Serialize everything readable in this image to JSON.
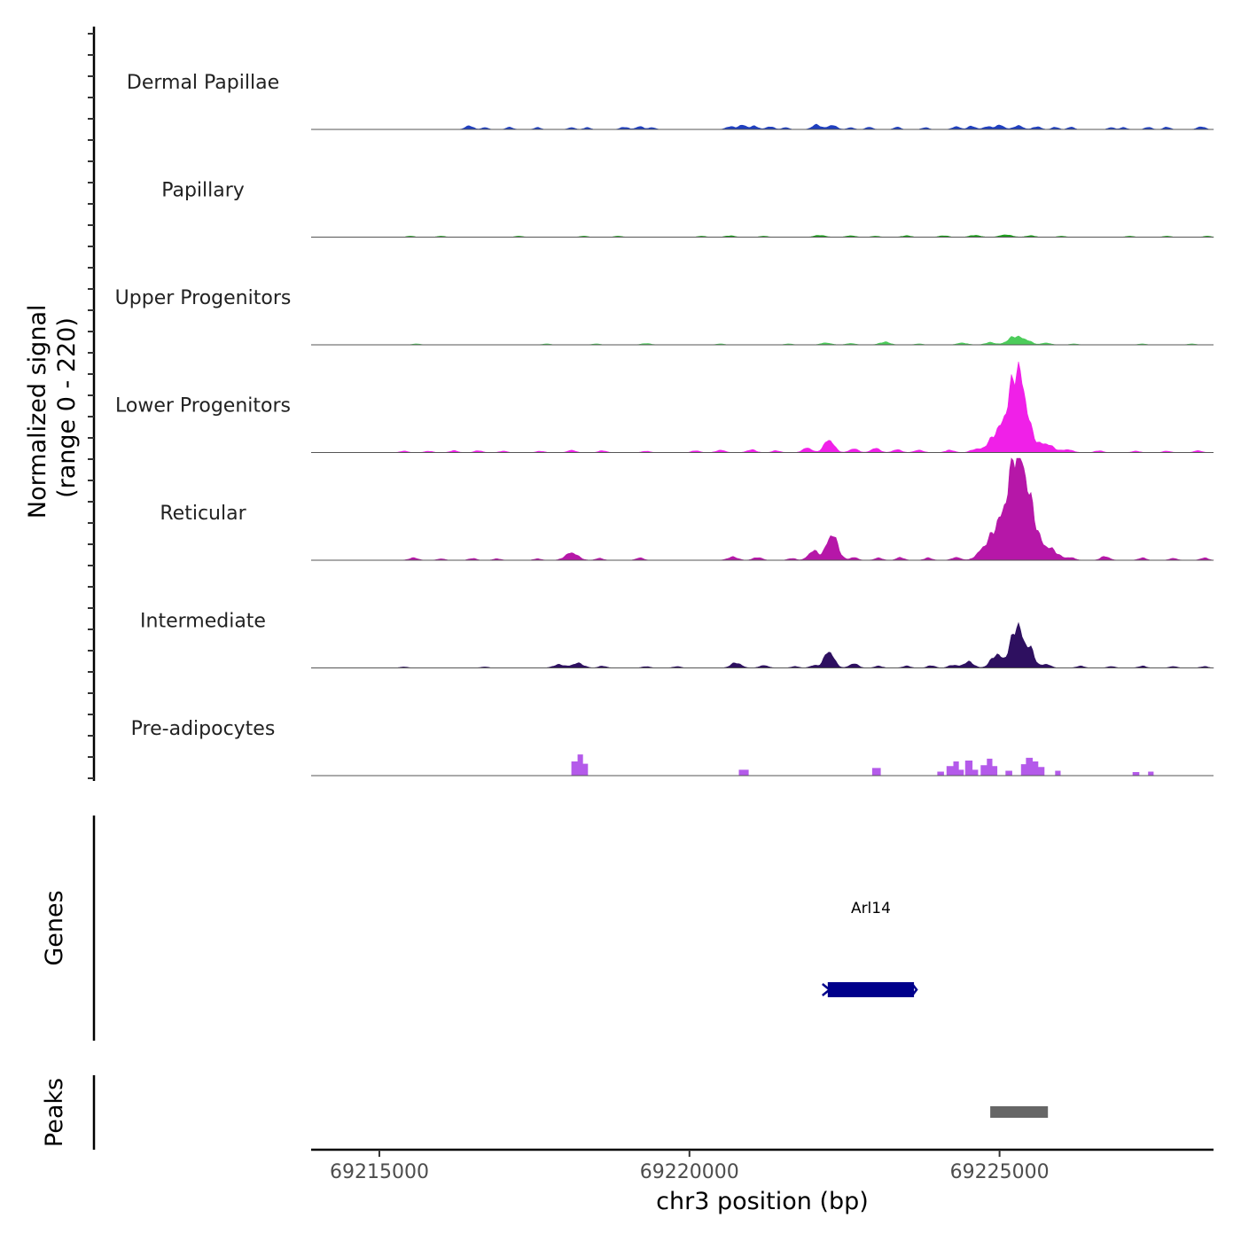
{
  "chart_data": {
    "type": "area",
    "title": "",
    "xlabel": "chr3 position (bp)",
    "ylabel_line1": "Normalized signal",
    "ylabel_line2": "(range 0 - 220)",
    "y_range": [
      0,
      220
    ],
    "xlim": [
      69213900,
      69228450
    ],
    "x_ticks": [
      69215000,
      69220000,
      69225000
    ],
    "x_tick_labels": [
      "69215000",
      "69220000",
      "69225000"
    ],
    "tracks": [
      {
        "name": "Dermal Papillae",
        "color": "#1f3fbf",
        "peaks": [
          [
            69216450,
            8,
            60
          ],
          [
            69216700,
            4,
            50
          ],
          [
            69217100,
            5,
            50
          ],
          [
            69217550,
            4,
            50
          ],
          [
            69218100,
            4,
            50
          ],
          [
            69218350,
            4,
            50
          ],
          [
            69218950,
            5,
            60
          ],
          [
            69219200,
            6,
            60
          ],
          [
            69219400,
            4,
            50
          ],
          [
            69220650,
            6,
            60
          ],
          [
            69220850,
            9,
            70
          ],
          [
            69221050,
            7,
            60
          ],
          [
            69221300,
            6,
            60
          ],
          [
            69221550,
            4,
            50
          ],
          [
            69222050,
            10,
            70
          ],
          [
            69222300,
            9,
            70
          ],
          [
            69222600,
            4,
            50
          ],
          [
            69222900,
            5,
            50
          ],
          [
            69223350,
            5,
            50
          ],
          [
            69223800,
            4,
            50
          ],
          [
            69224300,
            6,
            60
          ],
          [
            69224550,
            7,
            60
          ],
          [
            69224800,
            6,
            60
          ],
          [
            69225000,
            9,
            70
          ],
          [
            69225300,
            8,
            70
          ],
          [
            69225600,
            6,
            60
          ],
          [
            69225900,
            5,
            50
          ],
          [
            69226150,
            5,
            50
          ],
          [
            69226800,
            4,
            50
          ],
          [
            69227000,
            4,
            50
          ],
          [
            69227400,
            5,
            50
          ],
          [
            69227700,
            5,
            50
          ],
          [
            69228250,
            6,
            60
          ]
        ]
      },
      {
        "name": "Papillary",
        "color": "#1e9e1e",
        "peaks": [
          [
            69215500,
            2,
            60
          ],
          [
            69216000,
            2,
            60
          ],
          [
            69217250,
            2,
            60
          ],
          [
            69218300,
            2,
            60
          ],
          [
            69218850,
            2,
            60
          ],
          [
            69220200,
            2,
            60
          ],
          [
            69220650,
            3,
            70
          ],
          [
            69221200,
            2,
            60
          ],
          [
            69222100,
            4,
            80
          ],
          [
            69222600,
            3,
            70
          ],
          [
            69223000,
            2,
            60
          ],
          [
            69223500,
            3,
            70
          ],
          [
            69224100,
            3,
            70
          ],
          [
            69224600,
            4,
            80
          ],
          [
            69225100,
            5,
            90
          ],
          [
            69225500,
            3,
            70
          ],
          [
            69226000,
            2,
            60
          ],
          [
            69227100,
            2,
            60
          ],
          [
            69227700,
            2,
            60
          ],
          [
            69228350,
            2,
            60
          ]
        ]
      },
      {
        "name": "Upper Progenitors",
        "color": "#4ccc5a",
        "peaks": [
          [
            69215600,
            2,
            60
          ],
          [
            69217700,
            2,
            60
          ],
          [
            69218500,
            2,
            60
          ],
          [
            69219300,
            3,
            70
          ],
          [
            69220500,
            2,
            60
          ],
          [
            69221600,
            2,
            60
          ],
          [
            69222200,
            4,
            80
          ],
          [
            69222600,
            3,
            70
          ],
          [
            69223150,
            6,
            80
          ],
          [
            69223700,
            2,
            60
          ],
          [
            69224400,
            4,
            80
          ],
          [
            69224850,
            5,
            80
          ],
          [
            69225250,
            18,
            110
          ],
          [
            69225450,
            7,
            80
          ],
          [
            69225750,
            4,
            70
          ],
          [
            69226200,
            2,
            60
          ],
          [
            69227300,
            2,
            60
          ],
          [
            69228100,
            2,
            60
          ]
        ]
      },
      {
        "name": "Lower Progenitors",
        "color": "#f020e8",
        "peaks": [
          [
            69215400,
            3,
            60
          ],
          [
            69215800,
            3,
            60
          ],
          [
            69216200,
            4,
            60
          ],
          [
            69216600,
            4,
            60
          ],
          [
            69217000,
            3,
            60
          ],
          [
            69217600,
            3,
            60
          ],
          [
            69218100,
            5,
            60
          ],
          [
            69218600,
            4,
            60
          ],
          [
            69219300,
            3,
            60
          ],
          [
            69220100,
            4,
            60
          ],
          [
            69220500,
            5,
            70
          ],
          [
            69221000,
            6,
            70
          ],
          [
            69221400,
            4,
            60
          ],
          [
            69221900,
            10,
            70
          ],
          [
            69222250,
            27,
            80
          ],
          [
            69222650,
            8,
            70
          ],
          [
            69223000,
            9,
            70
          ],
          [
            69223350,
            6,
            70
          ],
          [
            69223700,
            5,
            70
          ],
          [
            69224200,
            5,
            70
          ],
          [
            69224600,
            6,
            70
          ],
          [
            69225000,
            45,
            150
          ],
          [
            69225280,
            162,
            120
          ],
          [
            69225450,
            30,
            110
          ],
          [
            69225750,
            18,
            120
          ],
          [
            69226100,
            6,
            80
          ],
          [
            69226600,
            4,
            60
          ],
          [
            69227200,
            3,
            60
          ],
          [
            69227700,
            3,
            60
          ],
          [
            69228200,
            4,
            60
          ]
        ]
      },
      {
        "name": "Reticular",
        "color": "#b617a8",
        "peaks": [
          [
            69215550,
            5,
            70
          ],
          [
            69216000,
            3,
            60
          ],
          [
            69216500,
            4,
            60
          ],
          [
            69216900,
            3,
            60
          ],
          [
            69217550,
            3,
            60
          ],
          [
            69218100,
            16,
            100
          ],
          [
            69218550,
            4,
            60
          ],
          [
            69219200,
            5,
            60
          ],
          [
            69220700,
            7,
            80
          ],
          [
            69221100,
            6,
            70
          ],
          [
            69221650,
            4,
            60
          ],
          [
            69222000,
            20,
            80
          ],
          [
            69222300,
            55,
            90
          ],
          [
            69222650,
            6,
            60
          ],
          [
            69223050,
            5,
            60
          ],
          [
            69223400,
            6,
            60
          ],
          [
            69223850,
            5,
            60
          ],
          [
            69224300,
            6,
            70
          ],
          [
            69224700,
            10,
            90
          ],
          [
            69225000,
            75,
            160
          ],
          [
            69225280,
            215,
            120
          ],
          [
            69225500,
            90,
            110
          ],
          [
            69225800,
            25,
            130
          ],
          [
            69226150,
            5,
            70
          ],
          [
            69226700,
            8,
            70
          ],
          [
            69227300,
            5,
            60
          ],
          [
            69227800,
            4,
            60
          ],
          [
            69228300,
            5,
            60
          ]
        ]
      },
      {
        "name": "Intermediate",
        "color": "#2e1060",
        "peaks": [
          [
            69215400,
            2,
            60
          ],
          [
            69216700,
            2,
            60
          ],
          [
            69217900,
            7,
            90
          ],
          [
            69218200,
            10,
            90
          ],
          [
            69218600,
            4,
            60
          ],
          [
            69219300,
            3,
            60
          ],
          [
            69219800,
            3,
            60
          ],
          [
            69220750,
            11,
            80
          ],
          [
            69221200,
            5,
            70
          ],
          [
            69221700,
            3,
            60
          ],
          [
            69222000,
            5,
            60
          ],
          [
            69222250,
            35,
            80
          ],
          [
            69222650,
            9,
            70
          ],
          [
            69223050,
            4,
            60
          ],
          [
            69223500,
            4,
            60
          ],
          [
            69223900,
            5,
            60
          ],
          [
            69224250,
            6,
            70
          ],
          [
            69224500,
            13,
            80
          ],
          [
            69224950,
            28,
            90
          ],
          [
            69225280,
            90,
            100
          ],
          [
            69225500,
            35,
            70
          ],
          [
            69225750,
            8,
            70
          ],
          [
            69226300,
            4,
            60
          ],
          [
            69226800,
            3,
            60
          ],
          [
            69227300,
            4,
            60
          ],
          [
            69227800,
            3,
            60
          ],
          [
            69228300,
            3,
            60
          ]
        ]
      },
      {
        "name": "Pre-adipocytes",
        "color": "#b45aea",
        "blocks": [
          [
            69218100,
            69218200,
            30
          ],
          [
            69218200,
            69218280,
            45
          ],
          [
            69218280,
            69218360,
            25
          ],
          [
            69220800,
            69220950,
            12
          ],
          [
            69222950,
            69223080,
            16
          ],
          [
            69224000,
            69224100,
            8
          ],
          [
            69224150,
            69224260,
            20
          ],
          [
            69224260,
            69224340,
            30
          ],
          [
            69224340,
            69224420,
            12
          ],
          [
            69224450,
            69224560,
            32
          ],
          [
            69224560,
            69224650,
            12
          ],
          [
            69224700,
            69224800,
            22
          ],
          [
            69224800,
            69224880,
            36
          ],
          [
            69224880,
            69224960,
            20
          ],
          [
            69225100,
            69225200,
            10
          ],
          [
            69225350,
            69225430,
            24
          ],
          [
            69225430,
            69225530,
            38
          ],
          [
            69225530,
            69225620,
            30
          ],
          [
            69225620,
            69225720,
            18
          ],
          [
            69225900,
            69225980,
            10
          ],
          [
            69227150,
            69227250,
            7
          ],
          [
            69227400,
            69227480,
            8
          ]
        ]
      }
    ],
    "panel_labels": {
      "genes": "Genes",
      "peaks": "Peaks"
    },
    "genes": [
      {
        "name": "Arl14",
        "start": 69222230,
        "end": 69223620,
        "strand": "-",
        "color": "#00008b"
      }
    ],
    "peak_regions": [
      {
        "start": 69224850,
        "end": 69225780,
        "color": "#666666"
      }
    ]
  }
}
